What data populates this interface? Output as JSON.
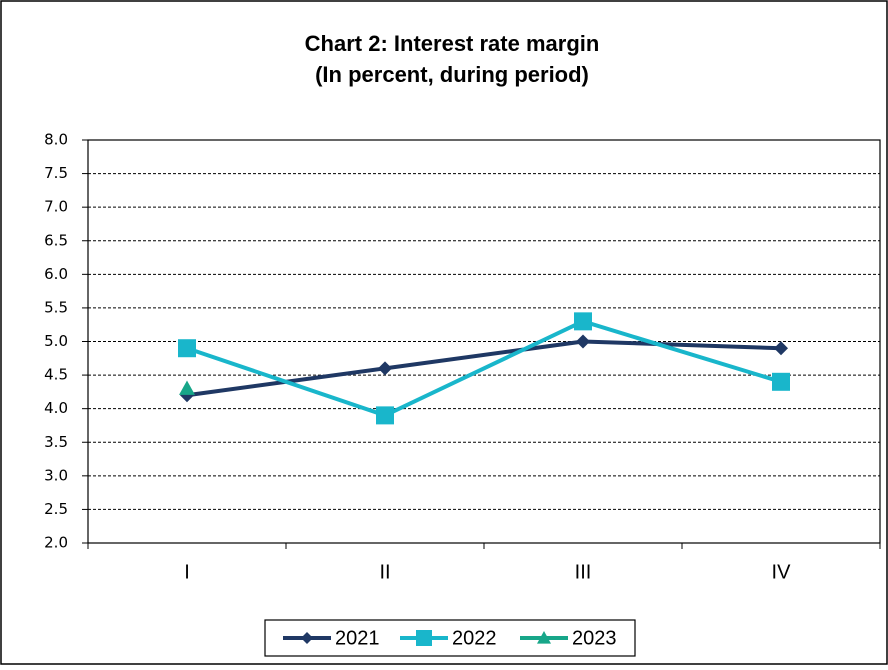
{
  "chart_data": {
    "type": "line",
    "title": "Chart 2: Interest rate margin",
    "subtitle": "(In percent, during period)",
    "categories": [
      "I",
      "II",
      "III",
      "IV"
    ],
    "series": [
      {
        "name": "2021",
        "color": "#1f3864",
        "marker": "diamond",
        "values": [
          4.2,
          4.6,
          5.0,
          4.9
        ]
      },
      {
        "name": "2022",
        "color": "#19b6cb",
        "marker": "square",
        "values": [
          4.9,
          3.9,
          5.3,
          4.4
        ]
      },
      {
        "name": "2023",
        "color": "#17a689",
        "marker": "triangle",
        "values": [
          4.3,
          null,
          null,
          null
        ]
      }
    ],
    "ylim": [
      2,
      8
    ],
    "yticks": [
      {
        "value": 2,
        "label": "2.0"
      },
      2.5,
      {
        "value": 3,
        "label": "3.0"
      },
      3.5,
      {
        "value": 4,
        "label": "4.0"
      },
      4.5,
      {
        "value": 5,
        "label": "5.0"
      },
      5.5,
      {
        "value": 6,
        "label": "6.0"
      },
      6.5,
      {
        "value": 7,
        "label": "7.0"
      },
      7.5,
      {
        "value": 8,
        "label": "8.0"
      }
    ],
    "grid": true,
    "legend": "bottom"
  }
}
